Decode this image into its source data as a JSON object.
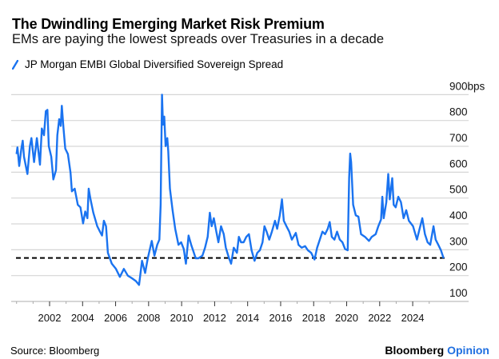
{
  "header": {
    "title": "The Dwindling Emerging Market Risk Premium",
    "subtitle": "EMs are paying the lowest spreads over Treasuries in a decade"
  },
  "footer": {
    "source": "Source: Bloomberg",
    "brand_main": "Bloomberg",
    "brand_accent": "Opinion"
  },
  "chart_data": {
    "type": "line",
    "title": "The Dwindling Emerging Market Risk Premium",
    "subtitle": "EMs are paying the lowest spreads over Treasuries in a decade",
    "xlabel": "",
    "ylabel": "",
    "ylim": [
      100,
      900
    ],
    "xlim": [
      2000,
      2026
    ],
    "grid": true,
    "legend_position": "top-left",
    "y_ticks": [
      100,
      200,
      300,
      400,
      500,
      600,
      700,
      800,
      900
    ],
    "y_tick_labels": [
      "100",
      "200",
      "300",
      "400",
      "500",
      "600",
      "700",
      "800",
      "900bps"
    ],
    "x_ticks": [
      2002,
      2004,
      2006,
      2008,
      2010,
      2012,
      2014,
      2016,
      2018,
      2020,
      2022,
      2024
    ],
    "x_tick_labels": [
      "2002",
      "2004",
      "2006",
      "2008",
      "2010",
      "2012",
      "2014",
      "2016",
      "2018",
      "2020",
      "2022",
      "2024"
    ],
    "reference_line": {
      "value": 268,
      "style": "dashed",
      "color": "#000000"
    },
    "series": [
      {
        "name": "JP Morgan EMBI Global Diversified Sovereign Spread",
        "color": "#1a73f0",
        "x": [
          2000.0,
          2000.05,
          2000.16,
          2000.29,
          2000.37,
          2000.45,
          2000.66,
          2000.81,
          2000.9,
          2001.06,
          2001.23,
          2001.42,
          2001.53,
          2001.66,
          2001.77,
          2001.87,
          2001.95,
          2002.1,
          2002.23,
          2002.39,
          2002.47,
          2002.58,
          2002.68,
          2002.74,
          2002.84,
          2002.95,
          2003.11,
          2003.27,
          2003.35,
          2003.52,
          2003.71,
          2003.87,
          2004.03,
          2004.16,
          2004.29,
          2004.37,
          2004.48,
          2004.65,
          2004.89,
          2005.05,
          2005.18,
          2005.29,
          2005.42,
          2005.53,
          2005.77,
          2006.02,
          2006.26,
          2006.5,
          2006.74,
          2006.98,
          2007.23,
          2007.42,
          2007.6,
          2007.79,
          2007.95,
          2008.19,
          2008.35,
          2008.52,
          2008.65,
          2008.73,
          2008.77,
          2008.81,
          2008.87,
          2008.95,
          2009.03,
          2009.13,
          2009.19,
          2009.29,
          2009.45,
          2009.61,
          2009.81,
          2009.97,
          2010.13,
          2010.26,
          2010.42,
          2010.58,
          2010.69,
          2010.85,
          2011.02,
          2011.26,
          2011.42,
          2011.58,
          2011.71,
          2011.82,
          2011.95,
          2012.1,
          2012.23,
          2012.39,
          2012.55,
          2012.68,
          2012.87,
          2013.0,
          2013.16,
          2013.35,
          2013.47,
          2013.6,
          2013.76,
          2013.92,
          2014.08,
          2014.24,
          2014.42,
          2014.58,
          2014.74,
          2014.9,
          2015.02,
          2015.15,
          2015.31,
          2015.47,
          2015.66,
          2015.79,
          2015.95,
          2016.08,
          2016.19,
          2016.35,
          2016.52,
          2016.68,
          2016.92,
          2017.08,
          2017.27,
          2017.48,
          2017.65,
          2017.85,
          2018.05,
          2018.21,
          2018.37,
          2018.53,
          2018.69,
          2018.85,
          2018.97,
          2019.1,
          2019.26,
          2019.42,
          2019.58,
          2019.74,
          2019.9,
          2020.06,
          2020.15,
          2020.21,
          2020.27,
          2020.39,
          2020.55,
          2020.71,
          2020.87,
          2021.11,
          2021.35,
          2021.52,
          2021.76,
          2021.92,
          2022.08,
          2022.16,
          2022.24,
          2022.4,
          2022.52,
          2022.61,
          2022.76,
          2022.85,
          2022.97,
          2023.13,
          2023.29,
          2023.45,
          2023.61,
          2023.77,
          2024.02,
          2024.26,
          2024.42,
          2024.58,
          2024.74,
          2024.9,
          2025.06,
          2025.26,
          2025.39,
          2025.55,
          2025.71,
          2025.87
        ],
        "values": [
          670,
          696,
          624,
          691,
          722,
          660,
          593,
          701,
          732,
          639,
          732,
          629,
          769,
          743,
          836,
          841,
          701,
          660,
          572,
          608,
          743,
          805,
          779,
          857,
          774,
          691,
          670,
          598,
          526,
          536,
          474,
          464,
          402,
          448,
          422,
          536,
          495,
          443,
          391,
          370,
          355,
          412,
          391,
          288,
          246,
          226,
          195,
          226,
          200,
          190,
          179,
          164,
          257,
          210,
          267,
          334,
          277,
          319,
          339,
          474,
          681,
          900,
          784,
          815,
          701,
          732,
          681,
          536,
          453,
          381,
          319,
          329,
          303,
          246,
          355,
          319,
          298,
          267,
          267,
          277,
          308,
          350,
          443,
          391,
          422,
          370,
          329,
          391,
          360,
          308,
          267,
          246,
          308,
          288,
          350,
          329,
          329,
          350,
          360,
          298,
          257,
          288,
          298,
          329,
          391,
          370,
          339,
          370,
          412,
          381,
          433,
          495,
          412,
          391,
          370,
          339,
          365,
          319,
          308,
          314,
          298,
          288,
          262,
          308,
          339,
          370,
          360,
          381,
          407,
          350,
          339,
          370,
          339,
          329,
          303,
          298,
          577,
          672,
          639,
          474,
          433,
          428,
          360,
          350,
          334,
          350,
          360,
          391,
          417,
          505,
          422,
          484,
          593,
          495,
          577,
          474,
          464,
          505,
          484,
          422,
          453,
          412,
          391,
          339,
          381,
          422,
          360,
          329,
          319,
          391,
          339,
          319,
          298,
          267
        ]
      }
    ]
  }
}
